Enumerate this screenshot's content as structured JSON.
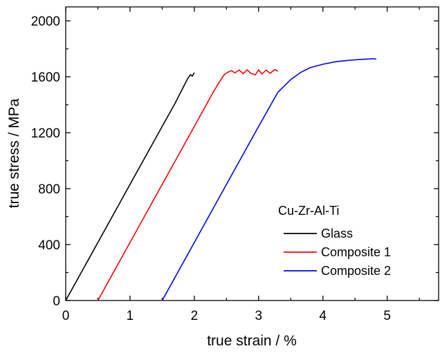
{
  "chart_data": {
    "type": "line",
    "title": "",
    "xlabel": "true strain / %",
    "ylabel": "true stress / MPa",
    "xlim": [
      0,
      5.8
    ],
    "ylim": [
      0,
      2100
    ],
    "xticks": [
      0,
      1,
      2,
      3,
      4,
      5
    ],
    "yticks": [
      0,
      400,
      800,
      1200,
      1600,
      2000
    ],
    "grid": false,
    "legend": {
      "title": "Cu-Zr-Al-Ti",
      "position": "bottom-right"
    },
    "series": [
      {
        "name": "Glass",
        "color": "#000000",
        "x": [
          0,
          0.5,
          1.0,
          1.5,
          1.7,
          1.8,
          1.85,
          1.9,
          1.94,
          1.97,
          2.0
        ],
        "y": [
          0,
          415,
          830,
          1245,
          1410,
          1500,
          1545,
          1590,
          1615,
          1605,
          1630
        ]
      },
      {
        "name": "Composite 1",
        "color": "#ff0000",
        "x": [
          0.5,
          1.0,
          1.5,
          2.0,
          2.3,
          2.4,
          2.47,
          2.52,
          2.58,
          2.63,
          2.7,
          2.76,
          2.82,
          2.88,
          2.95,
          3.0,
          3.05,
          3.12,
          3.18,
          3.25,
          3.3
        ],
        "y": [
          0,
          415,
          830,
          1245,
          1495,
          1570,
          1618,
          1632,
          1645,
          1628,
          1648,
          1622,
          1650,
          1625,
          1615,
          1650,
          1620,
          1648,
          1625,
          1652,
          1640
        ]
      },
      {
        "name": "Composite 2",
        "color": "#0000ff",
        "x": [
          1.5,
          2.0,
          2.5,
          3.0,
          3.3,
          3.5,
          3.65,
          3.8,
          4.0,
          4.2,
          4.4,
          4.6,
          4.8,
          4.83
        ],
        "y": [
          0,
          415,
          830,
          1245,
          1490,
          1580,
          1630,
          1665,
          1690,
          1708,
          1718,
          1725,
          1730,
          1725
        ]
      }
    ]
  }
}
